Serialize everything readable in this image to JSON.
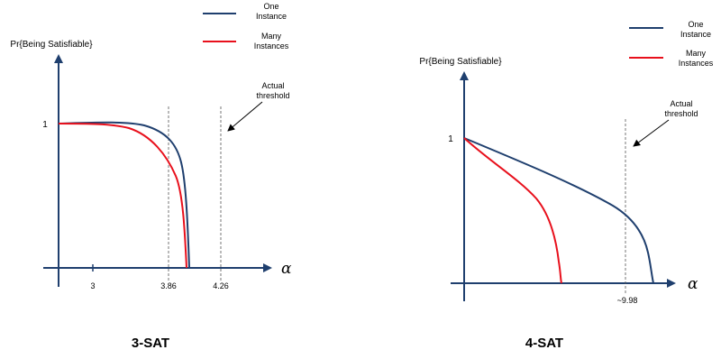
{
  "colors": {
    "one_instance": "#1f3f6e",
    "many_instances": "#e8101c",
    "axis": "#1f3f6e",
    "threshold": "#555555"
  },
  "panels": [
    {
      "caption": "3-SAT",
      "y_axis_label": "Pr{Being Satisfiable}",
      "y_tick": "1",
      "x_axis_symbol": "α",
      "x_ticks": [
        "3",
        "3.86",
        "4.26"
      ],
      "annotation": {
        "line1": "Actual",
        "line2": "threshold"
      },
      "legend": {
        "one": {
          "line1": "One",
          "line2": "Instance"
        },
        "many": {
          "line1": "Many",
          "line2": "Instances"
        }
      }
    },
    {
      "caption": "4-SAT",
      "y_axis_label": "Pr{Being Satisfiable}",
      "y_tick": "1",
      "x_axis_symbol": "α",
      "x_ticks": [
        "~9.98"
      ],
      "annotation": {
        "line1": "Actual",
        "line2": "threshold"
      },
      "legend": {
        "one": {
          "line1": "One",
          "line2": "Instance"
        },
        "many": {
          "line1": "Many",
          "line2": "Instances"
        }
      }
    }
  ]
}
